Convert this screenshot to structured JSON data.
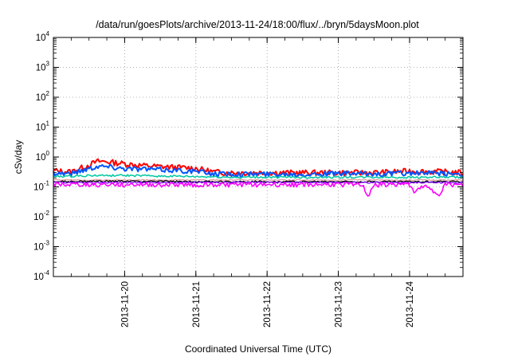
{
  "chart_data": {
    "type": "line",
    "title": "/data/run/goesPlots/archive/2013-11-24/18:00/flux/../bryn/5daysMoon.plot",
    "xlabel": "Coordinated Universal Time (UTC)",
    "ylabel": "cSv/day",
    "x_type": "time",
    "xlim": [
      "2013-11-19T00:00",
      "2013-11-24T18:00"
    ],
    "y_scale": "log",
    "ylim": [
      0.0001,
      10000
    ],
    "y_ticks": [
      {
        "value": 0.0001,
        "base": "10",
        "exp": "-4"
      },
      {
        "value": 0.001,
        "base": "10",
        "exp": "-3"
      },
      {
        "value": 0.01,
        "base": "10",
        "exp": "-2"
      },
      {
        "value": 0.1,
        "base": "10",
        "exp": "-1"
      },
      {
        "value": 1,
        "base": "10",
        "exp": "0"
      },
      {
        "value": 10,
        "base": "10",
        "exp": "1"
      },
      {
        "value": 100,
        "base": "10",
        "exp": "2"
      },
      {
        "value": 1000,
        "base": "10",
        "exp": "3"
      },
      {
        "value": 10000,
        "base": "10",
        "exp": "4"
      }
    ],
    "x_ticks": [
      "2013-11-20",
      "2013-11-21",
      "2013-11-22",
      "2013-11-23",
      "2013-11-24"
    ],
    "grid": true,
    "series": [
      {
        "color": "#ff0000",
        "x": [
          "2013-11-19T00:00",
          "2013-11-19T06:00",
          "2013-11-19T12:00",
          "2013-11-19T15:00",
          "2013-11-19T18:00",
          "2013-11-20T00:00",
          "2013-11-20T06:00",
          "2013-11-20T12:00",
          "2013-11-20T18:00",
          "2013-11-21T00:00",
          "2013-11-21T06:00",
          "2013-11-21T12:00",
          "2013-11-21T18:00",
          "2013-11-22T00:00",
          "2013-11-22T12:00",
          "2013-11-23T00:00",
          "2013-11-23T12:00",
          "2013-11-24T00:00",
          "2013-11-24T12:00",
          "2013-11-24T18:00"
        ],
        "y": [
          0.35,
          0.32,
          0.55,
          0.72,
          0.7,
          0.6,
          0.52,
          0.48,
          0.45,
          0.42,
          0.32,
          0.3,
          0.3,
          0.3,
          0.3,
          0.3,
          0.3,
          0.34,
          0.32,
          0.3
        ]
      },
      {
        "color": "#0055ff",
        "x": [
          "2013-11-19T00:00",
          "2013-11-19T06:00",
          "2013-11-19T12:00",
          "2013-11-19T15:00",
          "2013-11-19T18:00",
          "2013-11-20T00:00",
          "2013-11-20T06:00",
          "2013-11-20T12:00",
          "2013-11-20T18:00",
          "2013-11-21T00:00",
          "2013-11-21T06:00",
          "2013-11-21T12:00",
          "2013-11-21T18:00",
          "2013-11-22T00:00",
          "2013-11-22T12:00",
          "2013-11-23T00:00",
          "2013-11-23T12:00",
          "2013-11-24T00:00",
          "2013-11-24T12:00",
          "2013-11-24T18:00"
        ],
        "y": [
          0.3,
          0.28,
          0.42,
          0.5,
          0.48,
          0.42,
          0.4,
          0.38,
          0.36,
          0.33,
          0.28,
          0.27,
          0.27,
          0.27,
          0.27,
          0.28,
          0.27,
          0.29,
          0.28,
          0.27
        ]
      },
      {
        "color": "#00c8a0",
        "x": [
          "2013-11-19T00:00",
          "2013-11-19T12:00",
          "2013-11-20T00:00",
          "2013-11-20T12:00",
          "2013-11-21T00:00",
          "2013-11-21T12:00",
          "2013-11-22T00:00",
          "2013-11-22T12:00",
          "2013-11-23T00:00",
          "2013-11-23T12:00",
          "2013-11-24T00:00",
          "2013-11-24T12:00",
          "2013-11-24T18:00"
        ],
        "y": [
          0.22,
          0.24,
          0.24,
          0.23,
          0.22,
          0.21,
          0.21,
          0.21,
          0.21,
          0.21,
          0.21,
          0.21,
          0.21
        ]
      },
      {
        "color": "#e0a0a0",
        "x": [
          "2013-11-19T00:00",
          "2013-11-20T00:00",
          "2013-11-21T00:00",
          "2013-11-22T00:00",
          "2013-11-23T00:00",
          "2013-11-24T00:00",
          "2013-11-24T18:00"
        ],
        "y": [
          0.17,
          0.17,
          0.17,
          0.17,
          0.17,
          0.17,
          0.17
        ]
      },
      {
        "color": "#000000",
        "x": [
          "2013-11-19T00:00",
          "2013-11-20T00:00",
          "2013-11-21T00:00",
          "2013-11-22T00:00",
          "2013-11-23T00:00",
          "2013-11-24T00:00",
          "2013-11-24T18:00"
        ],
        "y": [
          0.15,
          0.155,
          0.15,
          0.15,
          0.15,
          0.15,
          0.15
        ]
      },
      {
        "color": "#8000ff",
        "x": [
          "2013-11-19T00:00",
          "2013-11-20T00:00",
          "2013-11-21T00:00",
          "2013-11-22T00:00",
          "2013-11-23T00:00",
          "2013-11-24T00:00",
          "2013-11-24T18:00"
        ],
        "y": [
          0.14,
          0.14,
          0.14,
          0.14,
          0.14,
          0.14,
          0.14
        ]
      },
      {
        "color": "#ff00ff",
        "x": [
          "2013-11-19T00:00",
          "2013-11-19T12:00",
          "2013-11-20T00:00",
          "2013-11-20T12:00",
          "2013-11-21T00:00",
          "2013-11-21T12:00",
          "2013-11-22T00:00",
          "2013-11-22T12:00",
          "2013-11-23T00:00",
          "2013-11-23T08:00",
          "2013-11-23T10:00",
          "2013-11-23T12:00",
          "2013-11-24T00:00",
          "2013-11-24T02:00",
          "2013-11-24T04:00",
          "2013-11-24T08:00",
          "2013-11-24T10:00",
          "2013-11-24T12:00",
          "2013-11-24T18:00"
        ],
        "y": [
          0.12,
          0.12,
          0.12,
          0.12,
          0.12,
          0.12,
          0.12,
          0.12,
          0.12,
          0.12,
          0.05,
          0.12,
          0.12,
          0.06,
          0.12,
          0.07,
          0.06,
          0.12,
          0.11
        ]
      }
    ]
  }
}
